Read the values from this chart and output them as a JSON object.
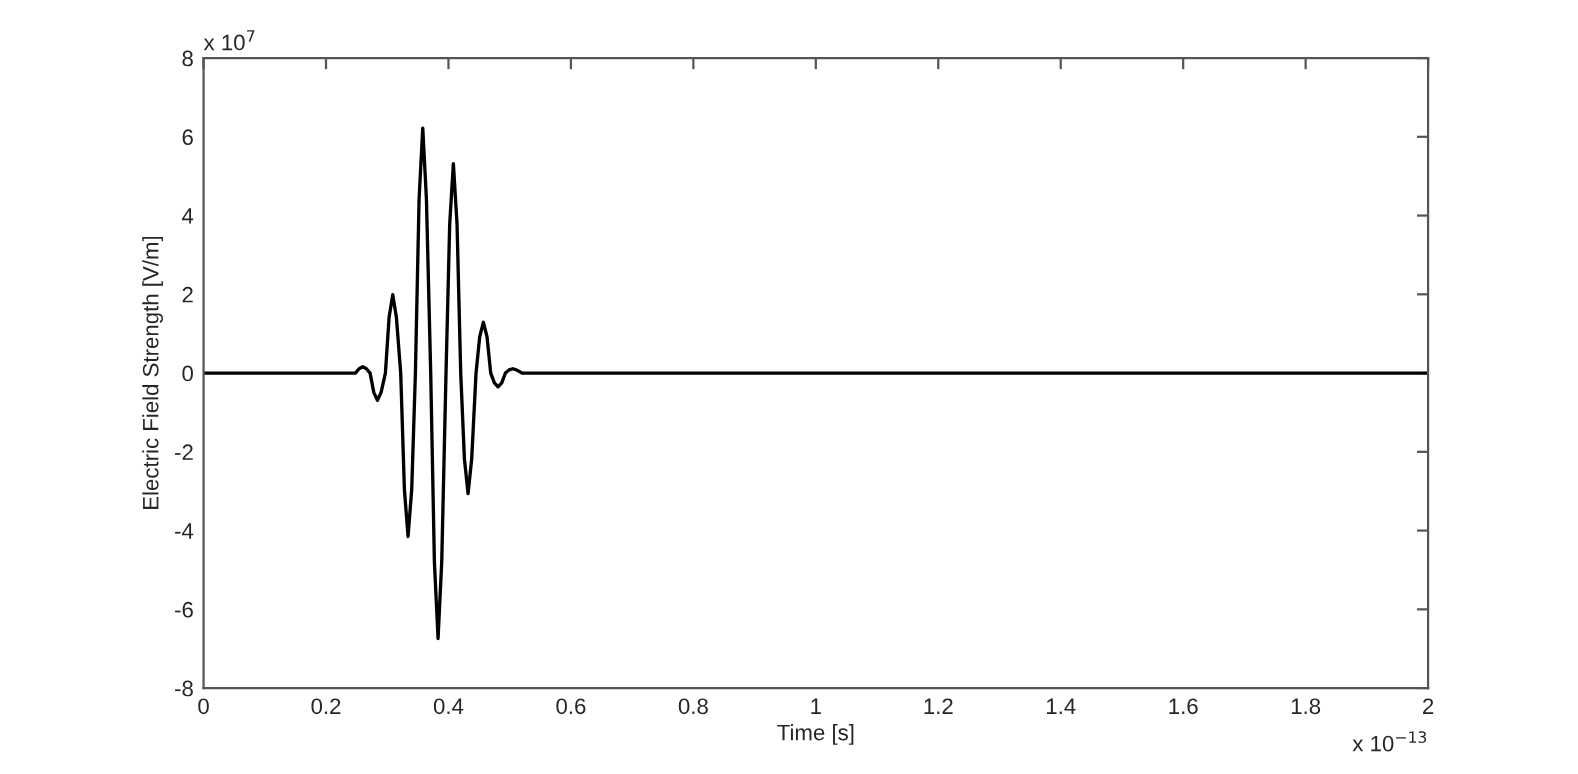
{
  "chart_data": {
    "type": "line",
    "xlabel": "Time [s]",
    "ylabel": "Electric Field Strength [V/m]",
    "annotations": [
      "x 10$^{7}$",
      "x 10$^{−13}$"
    ],
    "xlim": [
      0,
      2
    ],
    "xticks": [
      0,
      0.2,
      0.4,
      0.6,
      0.8,
      1,
      1.2,
      1.4,
      1.6,
      1.8,
      2
    ],
    "ylim": [
      -8,
      8
    ],
    "yticks": [
      -8,
      -6,
      -4,
      -2,
      0,
      2,
      4,
      6,
      8
    ],
    "grid": false,
    "marker": "none",
    "line_style": "solid",
    "series": [
      {
        "color": "#000000",
        "x": [
          0,
          0.248,
          0.254,
          0.26,
          0.266,
          0.272,
          0.278,
          0.284,
          0.29,
          0.297,
          0.303,
          0.309,
          0.315,
          0.322,
          0.328,
          0.334,
          0.34,
          0.346,
          0.352,
          0.358,
          0.364,
          0.371,
          0.377,
          0.383,
          0.389,
          0.396,
          0.402,
          0.408,
          0.414,
          0.42,
          0.426,
          0.432,
          0.438,
          0.445,
          0.451,
          0.457,
          0.463,
          0.469,
          0.475,
          0.481,
          0.487,
          0.493,
          0.499,
          0.505,
          0.511,
          0.52,
          2
        ],
        "values": [
          0,
          0,
          0.11,
          0.16,
          0.11,
          0,
          -0.49,
          -0.69,
          -0.49,
          0,
          1.41,
          1.99,
          1.41,
          0,
          -2.95,
          -4.15,
          -2.95,
          0,
          4.42,
          6.22,
          4.42,
          0,
          -4.79,
          -6.74,
          -4.79,
          0,
          3.78,
          5.32,
          3.78,
          0,
          -2.17,
          -3.06,
          -2.17,
          0,
          0.92,
          1.29,
          0.92,
          0,
          -0.25,
          -0.35,
          -0.25,
          0,
          0.08,
          0.11,
          0.08,
          0,
          0
        ]
      }
    ]
  }
}
